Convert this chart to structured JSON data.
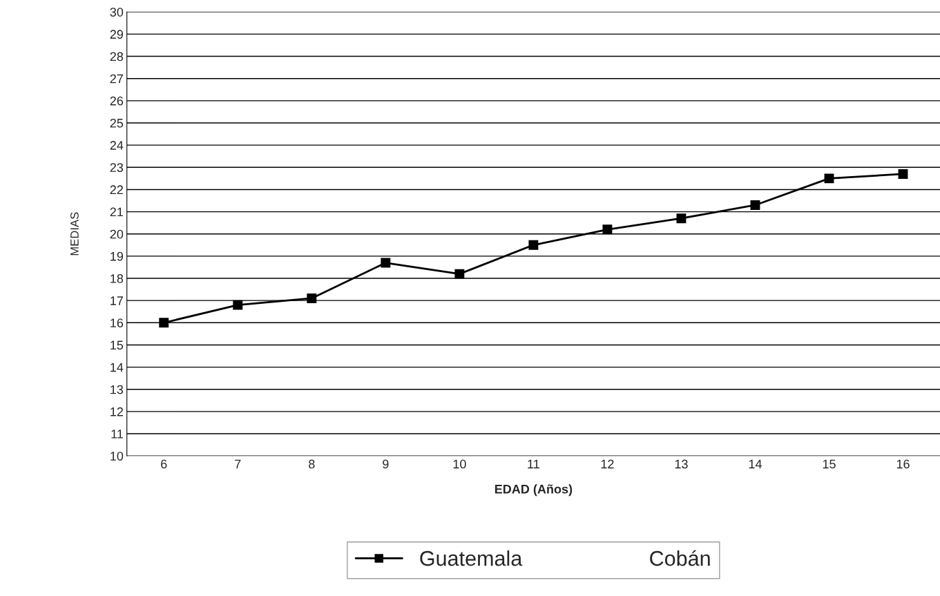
{
  "chart_data": {
    "type": "line",
    "xlabel": "EDAD (Años)",
    "ylabel": "MEDIAS",
    "categories": [
      "6",
      "7",
      "8",
      "9",
      "10",
      "11",
      "12",
      "13",
      "14",
      "15",
      "16"
    ],
    "series": [
      {
        "name": "Guatemala",
        "color": "#000000",
        "values": [
          16.0,
          16.8,
          17.1,
          18.7,
          18.2,
          19.5,
          20.2,
          20.7,
          21.3,
          22.5,
          22.7
        ]
      },
      {
        "name": "Cobán",
        "values": [
          null,
          null,
          null,
          null,
          null,
          null,
          null,
          null,
          null,
          null,
          null
        ]
      }
    ],
    "ylim": [
      10,
      30
    ],
    "yticks": [
      10,
      11,
      12,
      13,
      14,
      15,
      16,
      17,
      18,
      19,
      20,
      21,
      22,
      23,
      24,
      25,
      26,
      27,
      28,
      29,
      30
    ],
    "grid": "y",
    "legend": "bottom",
    "marker": "square",
    "line_style": "solid"
  }
}
